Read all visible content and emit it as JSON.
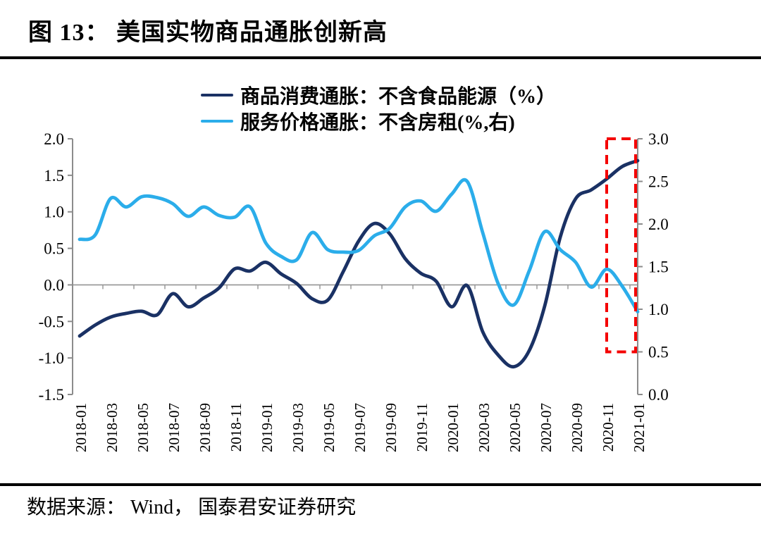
{
  "figure_title": "图 13： 美国实物商品通胀创新高",
  "source_note": "数据来源： Wind， 国泰君安证券研究",
  "chart_data": {
    "type": "line",
    "title": "美国实物商品通胀创新高",
    "grid": "zero-line-only",
    "legend_position": "top-center",
    "x": [
      "2018-01",
      "2018-02",
      "2018-03",
      "2018-04",
      "2018-05",
      "2018-06",
      "2018-07",
      "2018-08",
      "2018-09",
      "2018-10",
      "2018-11",
      "2018-12",
      "2019-01",
      "2019-02",
      "2019-03",
      "2019-04",
      "2019-05",
      "2019-06",
      "2019-07",
      "2019-08",
      "2019-09",
      "2019-10",
      "2019-11",
      "2019-12",
      "2020-01",
      "2020-02",
      "2020-03",
      "2020-04",
      "2020-05",
      "2020-06",
      "2020-07",
      "2020-08",
      "2020-09",
      "2020-10",
      "2020-11",
      "2020-12",
      "2021-01"
    ],
    "x_tick_labels": [
      "2018-01",
      "2018-03",
      "2018-05",
      "2018-07",
      "2018-09",
      "2018-11",
      "2019-01",
      "2019-03",
      "2019-05",
      "2019-07",
      "2019-09",
      "2019-11",
      "2020-01",
      "2020-03",
      "2020-05",
      "2020-07",
      "2020-09",
      "2020-11",
      "2021-01"
    ],
    "series": [
      {
        "name": "商品消费通胀：不含食品能源（%）",
        "axis": "left",
        "color": "#1a3164",
        "values": [
          -0.7,
          -0.55,
          -0.44,
          -0.39,
          -0.36,
          -0.41,
          -0.12,
          -0.3,
          -0.18,
          -0.04,
          0.22,
          0.19,
          0.31,
          0.15,
          0.02,
          -0.19,
          -0.21,
          0.18,
          0.6,
          0.84,
          0.7,
          0.36,
          0.16,
          0.05,
          -0.3,
          -0.01,
          -0.64,
          -0.96,
          -1.12,
          -0.9,
          -0.29,
          0.65,
          1.18,
          1.3,
          1.45,
          1.62,
          1.7
        ]
      },
      {
        "name": "服务价格通胀：不含房租(%,右)",
        "axis": "right",
        "color": "#2badea",
        "values": [
          1.82,
          1.87,
          2.3,
          2.2,
          2.32,
          2.31,
          2.24,
          2.09,
          2.2,
          2.1,
          2.08,
          2.2,
          1.78,
          1.62,
          1.58,
          1.9,
          1.7,
          1.67,
          1.69,
          1.86,
          1.95,
          2.2,
          2.27,
          2.15,
          2.35,
          2.5,
          1.9,
          1.3,
          1.05,
          1.45,
          1.91,
          1.7,
          1.55,
          1.26,
          1.47,
          1.27,
          0.97
        ]
      }
    ],
    "left_axis": {
      "min": -1.5,
      "max": 2.0,
      "tick_step": 0.5,
      "tick_labels": [
        "2.0",
        "1.5",
        "1.0",
        "0.5",
        "0.0",
        "-0.5",
        "-1.0",
        "-1.5"
      ]
    },
    "right_axis": {
      "min": 0.0,
      "max": 3.0,
      "tick_step": 0.5,
      "tick_labels": [
        "3.0",
        "2.5",
        "2.0",
        "1.5",
        "1.0",
        "0.5",
        "0.0"
      ]
    },
    "annotation_box": {
      "type": "dashed-rect",
      "color": "#f40000",
      "x_range": [
        "2020-11",
        "2021-01"
      ],
      "right_axis_y_range": [
        0.5,
        3.0
      ]
    },
    "axis_color": "#8c8c8c",
    "zero_line_color": "#949494"
  }
}
